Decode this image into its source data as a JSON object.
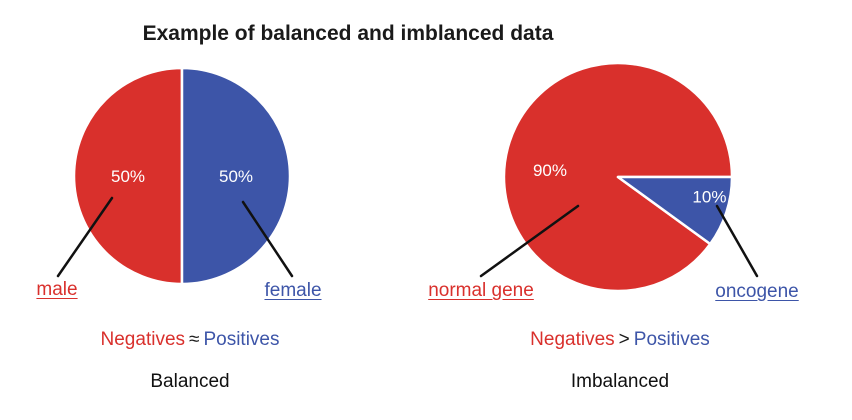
{
  "title": "Example of balanced and imblanced data",
  "colors": {
    "negative_red": "#d9302c",
    "positive_blue": "#3d55a8",
    "text": "#1a1a1a",
    "percent_text": "#ffffff"
  },
  "chart_data": [
    {
      "type": "pie",
      "name": "balanced",
      "start_angle": 180,
      "slices": [
        {
          "label": "male",
          "value": 50,
          "display": "50%",
          "color": "#d9302c",
          "label_angle": 270,
          "label_dist": 0.5
        },
        {
          "label": "female",
          "value": 50,
          "display": "50%",
          "color": "#3d55a8",
          "label_angle": 90,
          "label_dist": 0.5
        }
      ],
      "relation": {
        "left": "Negatives",
        "op": "≈",
        "right": "Positives"
      },
      "caption": "Balanced"
    },
    {
      "type": "pie",
      "name": "imbalanced",
      "start_angle": 126,
      "slices": [
        {
          "label": "normal gene",
          "value": 90,
          "display": "90%",
          "color": "#d9302c",
          "label_angle": 276,
          "label_dist": 0.6
        },
        {
          "label": "oncogene",
          "value": 10,
          "display": "10%",
          "color": "#3d55a8",
          "label_angle": 102,
          "label_dist": 0.82
        }
      ],
      "relation": {
        "left": "Negatives",
        "op": ">",
        "right": "Positives"
      },
      "caption": "Imbalanced"
    }
  ]
}
